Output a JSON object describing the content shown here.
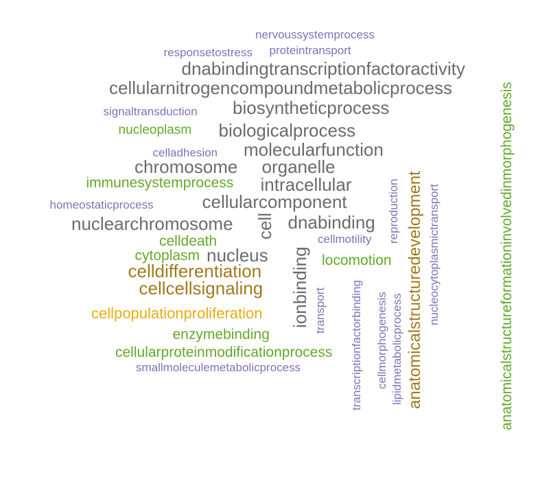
{
  "colors": {
    "gray": "#6b6b6b",
    "purple": "#7b74b8",
    "green": "#62a92a",
    "brown": "#a07a1e",
    "yellow": "#e6ad12"
  },
  "words": [
    {
      "text": "nervoussystemprocess",
      "color": "purple"
    },
    {
      "text": "responsetostress",
      "color": "purple"
    },
    {
      "text": "proteintransport",
      "color": "purple"
    },
    {
      "text": "dnabindingtranscriptionfactoractivity",
      "color": "gray"
    },
    {
      "text": "cellularnitrogencompoundmetabolicprocess",
      "color": "gray"
    },
    {
      "text": "signaltransduction",
      "color": "purple"
    },
    {
      "text": "biosyntheticprocess",
      "color": "gray"
    },
    {
      "text": "nucleoplasm",
      "color": "green"
    },
    {
      "text": "biologicalprocess",
      "color": "gray"
    },
    {
      "text": "celladhesion",
      "color": "purple"
    },
    {
      "text": "molecularfunction",
      "color": "gray"
    },
    {
      "text": "chromosome",
      "color": "gray"
    },
    {
      "text": "organelle",
      "color": "gray"
    },
    {
      "text": "immunesystemprocess",
      "color": "green"
    },
    {
      "text": "intracellular",
      "color": "gray"
    },
    {
      "text": "homeostaticprocess",
      "color": "purple"
    },
    {
      "text": "cellularcomponent",
      "color": "gray"
    },
    {
      "text": "nuclearchromosome",
      "color": "gray"
    },
    {
      "text": "cell",
      "color": "gray"
    },
    {
      "text": "dnabinding",
      "color": "gray"
    },
    {
      "text": "celldeath",
      "color": "green"
    },
    {
      "text": "cellmotility",
      "color": "purple"
    },
    {
      "text": "cytoplasm",
      "color": "green"
    },
    {
      "text": "nucleus",
      "color": "gray"
    },
    {
      "text": "locomotion",
      "color": "green"
    },
    {
      "text": "celldifferentiation",
      "color": "brown"
    },
    {
      "text": "cellcellsignaling",
      "color": "brown"
    },
    {
      "text": "cellpopulationproliferation",
      "color": "yellow"
    },
    {
      "text": "enzymebinding",
      "color": "green"
    },
    {
      "text": "cellularproteinmodificationprocess",
      "color": "green"
    },
    {
      "text": "smallmoleculemetabolicprocess",
      "color": "purple"
    },
    {
      "text": "ionbinding",
      "color": "gray"
    },
    {
      "text": "transport",
      "color": "purple"
    },
    {
      "text": "transcriptionfactorbinding",
      "color": "purple"
    },
    {
      "text": "cellmorphogenesis",
      "color": "purple"
    },
    {
      "text": "lipidmetabolicprocess",
      "color": "purple"
    },
    {
      "text": "reproduction",
      "color": "purple"
    },
    {
      "text": "anatomicalstructuredevelopment",
      "color": "brown"
    },
    {
      "text": "nucleocytoplasmictransport",
      "color": "purple"
    },
    {
      "text": "anatomicalstructureformationinvolvedinmorphogenesis",
      "color": "green"
    }
  ]
}
